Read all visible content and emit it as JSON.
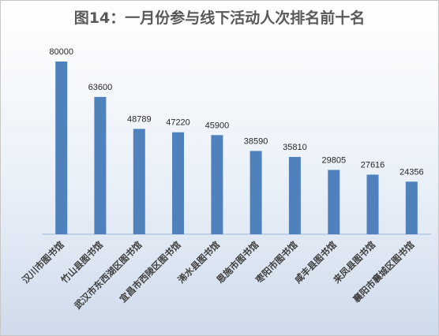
{
  "chart_data": {
    "type": "bar",
    "title": "图14：一月份参与线下活动人次排名前十名",
    "categories": [
      "汉川市图书馆",
      "竹山县图书馆",
      "武汉市东西湖区图书馆",
      "宜昌市西陵区图书馆",
      "浠水县图书馆",
      "恩施市图书馆",
      "枣阳市图书馆",
      "咸丰县图书馆",
      "来凤县图书馆",
      "襄阳市襄城区图书馆"
    ],
    "values": [
      80000,
      63600,
      48789,
      47220,
      45900,
      38590,
      35810,
      29805,
      27616,
      24356
    ],
    "ylim": [
      0,
      85000
    ],
    "grid": false,
    "legend": "none",
    "bar_color": "#4f81bd",
    "axis_color": "#9fb6d8"
  }
}
